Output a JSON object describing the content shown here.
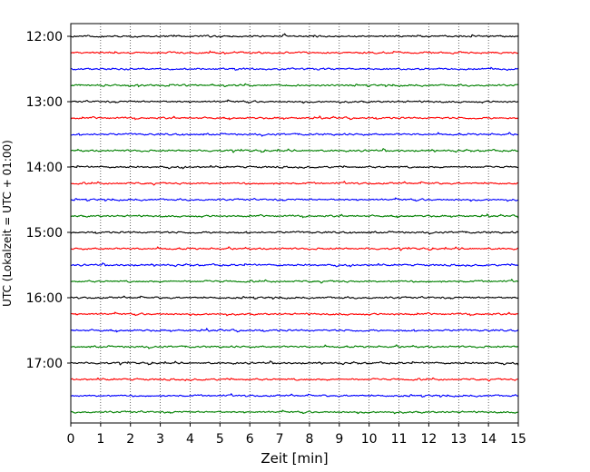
{
  "chart_data": {
    "type": "line",
    "title": "",
    "xlabel": "Zeit  [min]",
    "ylabel": "UTC (Lokalzeit = UTC + 01:00)",
    "xlim": [
      0,
      15
    ],
    "x_ticks": [
      0,
      1,
      2,
      3,
      4,
      5,
      6,
      7,
      8,
      9,
      10,
      11,
      12,
      13,
      14,
      15
    ],
    "x_tick_labels": [
      "0",
      "1",
      "2",
      "3",
      "4",
      "5",
      "6",
      "7",
      "8",
      "9",
      "10",
      "11",
      "12",
      "13",
      "14",
      "15"
    ],
    "y_tick_labels": [
      "12:00",
      "13:00",
      "14:00",
      "15:00",
      "16:00",
      "17:00"
    ],
    "y_tick_rows": [
      0,
      4,
      8,
      12,
      16,
      20
    ],
    "start_time": "12:00",
    "trace_minutes": 15,
    "trace_count": 24,
    "trace_colors": [
      "#000000",
      "#ff0000",
      "#0000ff",
      "#008000"
    ],
    "grid": "vertical dotted lines at each minute"
  }
}
